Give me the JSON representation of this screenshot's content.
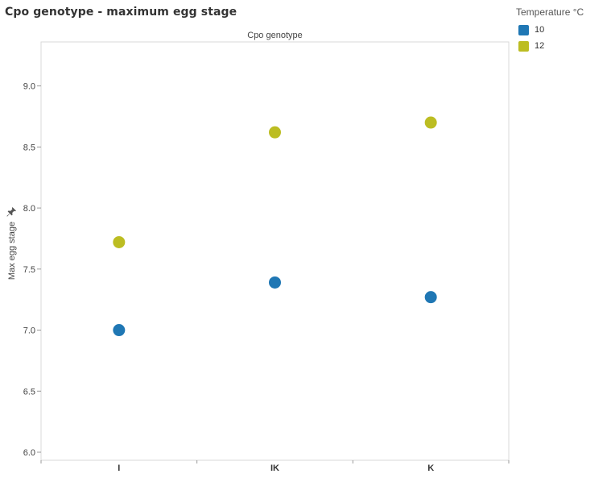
{
  "chart_data": {
    "type": "scatter",
    "title": "Cpo genotype - maximum egg stage",
    "column_header": "Cpo genotype",
    "ylabel": "Max egg stage",
    "xlabel": "",
    "categories": [
      "I",
      "IK",
      "K"
    ],
    "ylim": [
      6.0,
      9.35
    ],
    "yticks": [
      6.0,
      6.5,
      7.0,
      7.5,
      8.0,
      8.5,
      9.0
    ],
    "ytick_labels": [
      "6.0",
      "6.5",
      "7.0",
      "7.5",
      "8.0",
      "8.5",
      "9.0"
    ],
    "grid": false,
    "legend_placement": "top-right",
    "legend_title": "Temperature °C",
    "series": [
      {
        "name": "10",
        "color": "#1f77b4",
        "values": [
          7.0,
          7.39,
          7.27
        ]
      },
      {
        "name": "12",
        "color": "#bcbd22",
        "values": [
          7.72,
          8.62,
          8.7
        ]
      }
    ]
  },
  "icons": {
    "pin": "pin-icon"
  }
}
